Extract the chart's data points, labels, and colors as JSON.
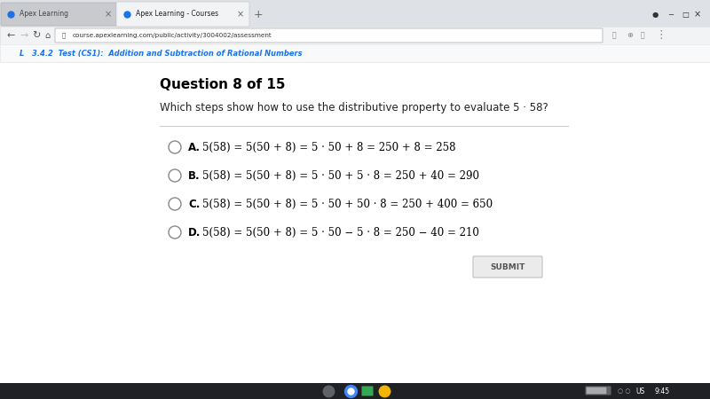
{
  "bg_color": "#f1f3f4",
  "content_bg": "#ffffff",
  "tab_bar_color": "#dee1e6",
  "active_tab_color": "#ffffff",
  "tab_text_active": "Apex Learning - Courses",
  "tab_text_inactive": "Apex Learning",
  "url": "course.apexlearning.com/public/activity/3004002/assessment",
  "breadcrumb": "3.4.2  Test (CS1):  Addition and Subtraction of Rational Numbers",
  "question_header": "Question 8 of 15",
  "question_text": "Which steps show how to use the distributive property to evaluate 5 · 58?",
  "option_A_bold": "A.",
  "option_A_eq": "5(58) = 5(50 + 8) = 5 · 50 + 8 = 250 + 8 = 258",
  "option_B_bold": "B.",
  "option_B_eq": "5(58) = 5(50 + 8) = 5 · 50 + 5 · 8 = 250 + 40 = 290",
  "option_C_bold": "C.",
  "option_C_eq": "5(58) = 5(50 + 8) = 5 · 50 + 50 · 8 = 250 + 400 = 650",
  "option_D_bold": "D.",
  "option_D_eq": "5(58) = 5(50 + 8) = 5 · 50 − 5 · 8 = 250 − 40 = 210",
  "submit_label": "SUBMIT",
  "taskbar_color": "#202124",
  "header_bg": "#1a73e8",
  "time_label": "9:45",
  "us_label": "US"
}
